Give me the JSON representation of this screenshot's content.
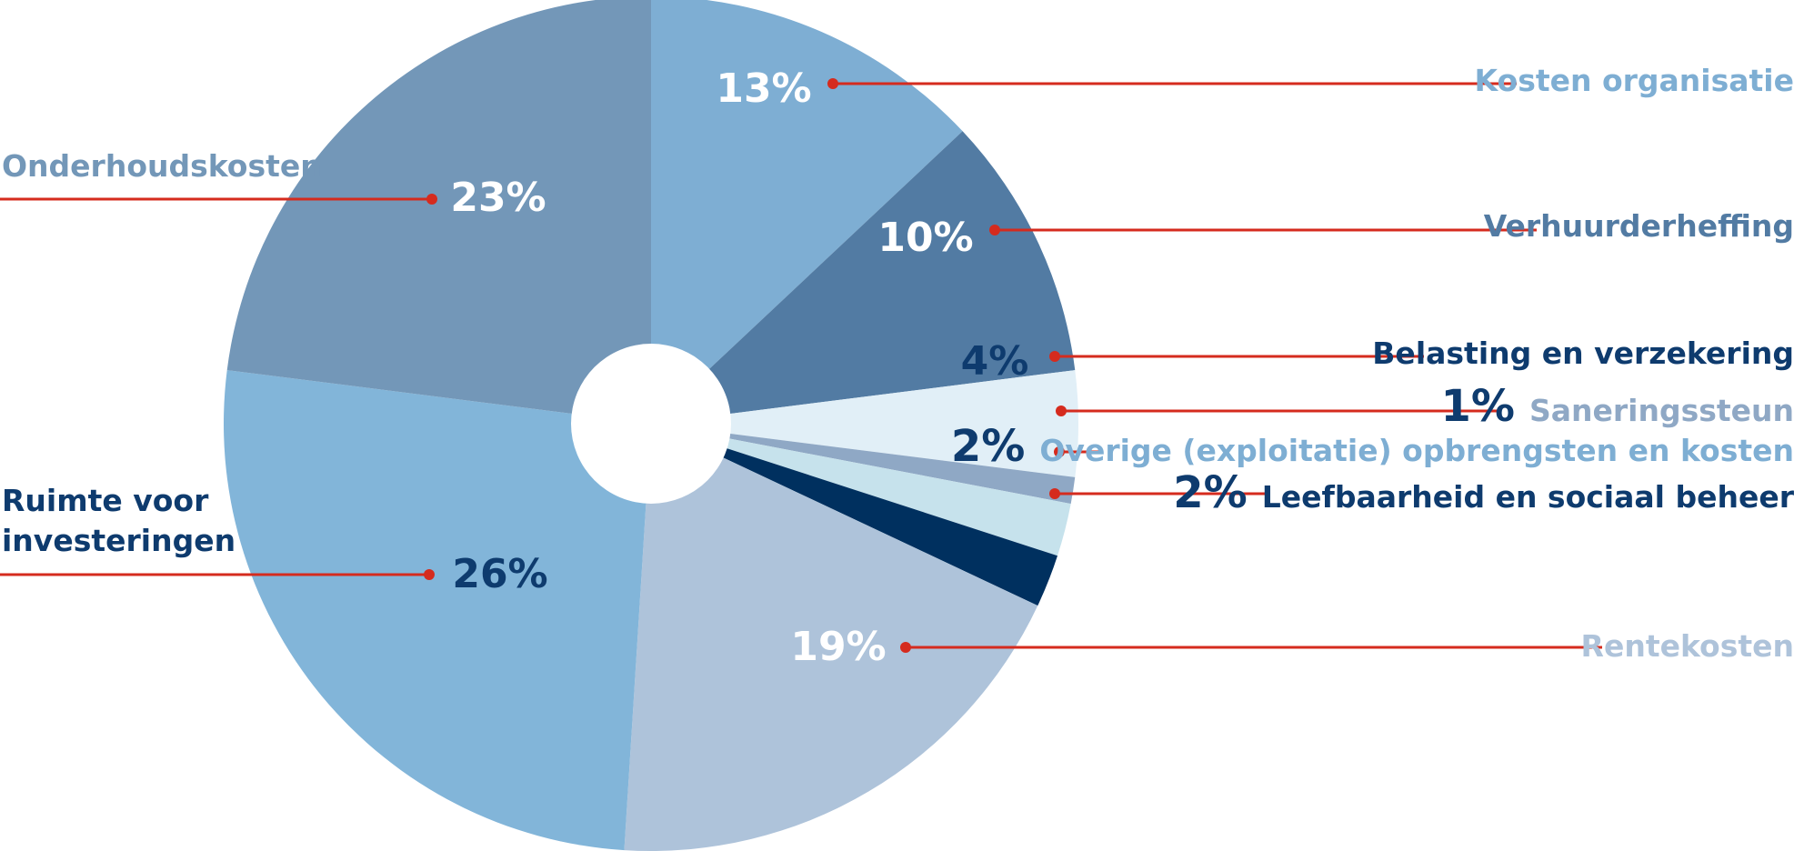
{
  "chart_data": {
    "type": "pie",
    "title": "",
    "unit": "%",
    "slices": [
      {
        "label": "Kosten organisatie",
        "value": 13,
        "value_label": "13%",
        "color": "#7eaed3",
        "label_color": "#7eaed3",
        "value_color": "#ffffff"
      },
      {
        "label": "Verhuurderheffing",
        "value": 10,
        "value_label": "10%",
        "color": "#527ba3",
        "label_color": "#527ba3",
        "value_color": "#ffffff"
      },
      {
        "label": "Belasting en verzekering",
        "value": 4,
        "value_label": "4%",
        "color": "#e1eff7",
        "label_color": "#0e3b6e",
        "value_color": "#0e3b6e"
      },
      {
        "label": "Saneringssteun",
        "value": 1,
        "value_label": "1%",
        "color": "#8fa8c5",
        "label_color": "#8fa8c5",
        "value_color": "#0e3b6e"
      },
      {
        "label": "Overige (exploitatie) opbrengsten en kosten",
        "value": 2,
        "value_label": "2%",
        "color": "#c6e2ec",
        "label_color": "#7eaed3",
        "value_color": "#0e3b6e"
      },
      {
        "label": "Leefbaarheid en sociaal beheer",
        "value": 2,
        "value_label": "2%",
        "color": "#00305f",
        "label_color": "#0e3b6e",
        "value_color": "#0e3b6e"
      },
      {
        "label": "Rentekosten",
        "value": 19,
        "value_label": "19%",
        "color": "#aec3da",
        "label_color": "#aec3da",
        "value_color": "#ffffff"
      },
      {
        "label": "Ruimte voor investeringen",
        "value": 26,
        "value_label": "26%",
        "color": "#82b5d9",
        "label_color": "#0e3b6e",
        "value_color": "#0e3b6e"
      },
      {
        "label": "Onderhoudskosten",
        "value": 23,
        "value_label": "23%",
        "color": "#7397b8",
        "label_color": "#7397b8",
        "value_color": "#ffffff"
      }
    ],
    "start": "12 o'clock",
    "direction": "clockwise",
    "leader_color": "#d52b1e"
  }
}
